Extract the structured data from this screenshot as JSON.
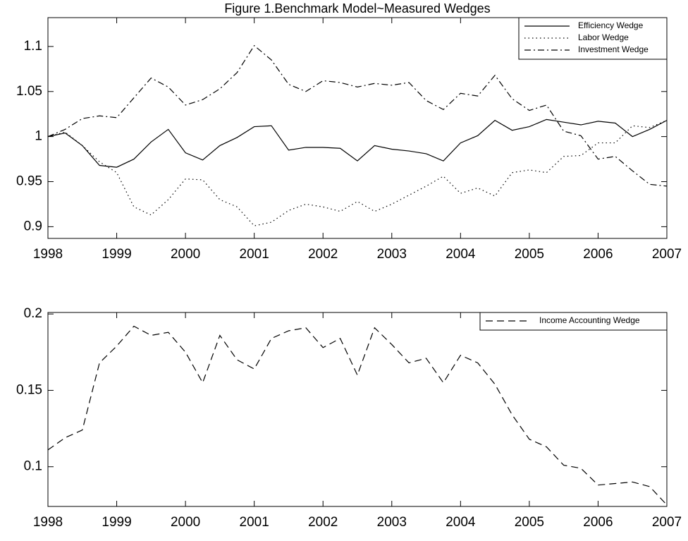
{
  "chart_data": [
    {
      "type": "line",
      "title": "Figure 1.Benchmark Model~Measured Wedges",
      "x": [
        1998,
        1998.25,
        1998.5,
        1998.75,
        1999,
        1999.25,
        1999.5,
        1999.75,
        2000,
        2000.25,
        2000.5,
        2000.75,
        2001,
        2001.25,
        2001.5,
        2001.75,
        2002,
        2002.25,
        2002.5,
        2002.75,
        2003,
        2003.25,
        2003.5,
        2003.75,
        2004,
        2004.25,
        2004.5,
        2004.75,
        2005,
        2005.25,
        2005.5,
        2005.75,
        2006,
        2006.25,
        2006.5,
        2006.75,
        2007
      ],
      "series": [
        {
          "name": "Efficiency Wedge",
          "color": "#000000",
          "style": "solid",
          "values": [
            1.0,
            1.004,
            0.99,
            0.968,
            0.966,
            0.975,
            0.994,
            1.008,
            0.982,
            0.974,
            0.99,
            0.999,
            1.011,
            1.012,
            0.985,
            0.988,
            0.988,
            0.987,
            0.973,
            0.99,
            0.986,
            0.984,
            0.981,
            0.973,
            0.993,
            1.001,
            1.018,
            1.007,
            1.011,
            1.019,
            1.016,
            1.013,
            1.017,
            1.015,
            1.0,
            1.008,
            1.018
          ]
        },
        {
          "name": "Labor Wedge",
          "color": "#000000",
          "style": "dotted",
          "values": [
            1.0,
            1.005,
            0.99,
            0.972,
            0.96,
            0.922,
            0.913,
            0.93,
            0.953,
            0.952,
            0.93,
            0.922,
            0.901,
            0.905,
            0.918,
            0.925,
            0.922,
            0.917,
            0.928,
            0.917,
            0.925,
            0.935,
            0.945,
            0.956,
            0.937,
            0.943,
            0.934,
            0.96,
            0.963,
            0.96,
            0.978,
            0.979,
            0.993,
            0.993,
            1.012,
            1.01,
            1.018
          ]
        },
        {
          "name": "Investment Wedge",
          "color": "#000000",
          "style": "dashdot",
          "values": [
            1.0,
            1.008,
            1.02,
            1.023,
            1.021,
            1.043,
            1.065,
            1.055,
            1.035,
            1.041,
            1.053,
            1.071,
            1.101,
            1.085,
            1.058,
            1.05,
            1.062,
            1.06,
            1.055,
            1.059,
            1.057,
            1.06,
            1.04,
            1.03,
            1.048,
            1.045,
            1.068,
            1.042,
            1.029,
            1.035,
            1.006,
            1.001,
            0.975,
            0.978,
            0.962,
            0.947,
            0.945
          ]
        }
      ],
      "xlim": [
        1998,
        2007
      ],
      "xticks": [
        1998,
        1999,
        2000,
        2001,
        2002,
        2003,
        2004,
        2005,
        2006,
        2007
      ],
      "ylim": [
        0.887,
        1.132
      ],
      "yticks": [
        0.9,
        0.95,
        1,
        1.05,
        1.1
      ],
      "grid": false,
      "legend": "upper right"
    },
    {
      "type": "line",
      "x": [
        1998,
        1998.25,
        1998.5,
        1998.75,
        1999,
        1999.25,
        1999.5,
        1999.75,
        2000,
        2000.25,
        2000.5,
        2000.75,
        2001,
        2001.25,
        2001.5,
        2001.75,
        2002,
        2002.25,
        2002.5,
        2002.75,
        2003,
        2003.25,
        2003.5,
        2003.75,
        2004,
        2004.25,
        2004.5,
        2004.75,
        2005,
        2005.25,
        2005.5,
        2005.75,
        2006,
        2006.25,
        2006.5,
        2006.75,
        2007
      ],
      "series": [
        {
          "name": "Income Accounting Wedge",
          "color": "#000000",
          "style": "dashed",
          "values": [
            0.111,
            0.119,
            0.124,
            0.168,
            0.179,
            0.192,
            0.186,
            0.188,
            0.175,
            0.155,
            0.186,
            0.17,
            0.164,
            0.184,
            0.189,
            0.191,
            0.178,
            0.184,
            0.16,
            0.191,
            0.18,
            0.168,
            0.171,
            0.155,
            0.173,
            0.168,
            0.154,
            0.134,
            0.118,
            0.113,
            0.101,
            0.099,
            0.088,
            0.089,
            0.09,
            0.087,
            0.075
          ]
        }
      ],
      "xlim": [
        1998,
        2007
      ],
      "xticks": [
        1998,
        1999,
        2000,
        2001,
        2002,
        2003,
        2004,
        2005,
        2006,
        2007
      ],
      "ylim": [
        0.074,
        0.201
      ],
      "yticks": [
        0.1,
        0.15,
        0.2
      ],
      "grid": false,
      "legend": "upper right"
    }
  ]
}
